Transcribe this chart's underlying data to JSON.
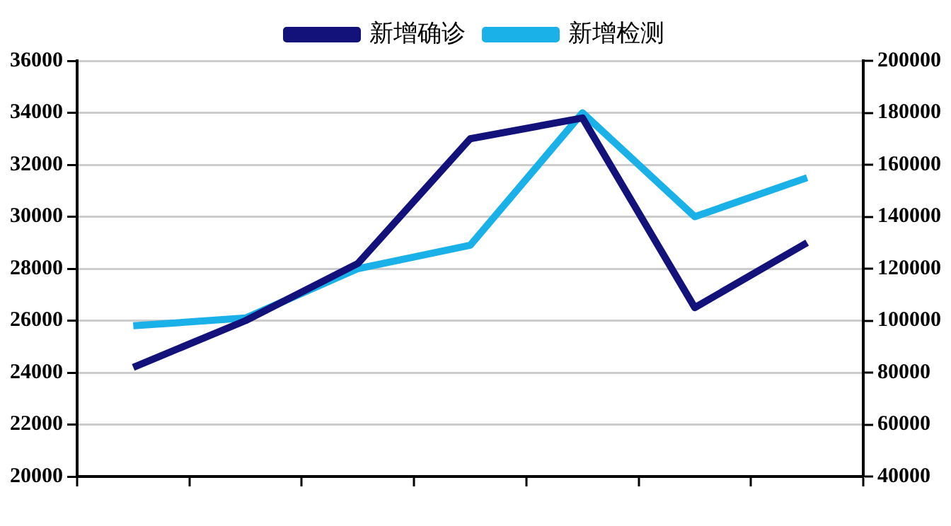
{
  "chart_data": {
    "type": "line",
    "categories": [
      null,
      null,
      null,
      null,
      null,
      null,
      null
    ],
    "series": [
      {
        "name": "新增确诊",
        "color": "#12127a",
        "values": [
          24200,
          26000,
          28200,
          33000,
          33800,
          26500,
          29000
        ]
      },
      {
        "name": "新增检测",
        "color": "#1ab0e8",
        "axis": "y2",
        "values": [
          98000,
          101000,
          120000,
          129000,
          180000,
          140000,
          155000
        ]
      }
    ],
    "ylim": [
      20000,
      36000
    ],
    "yticks": [
      20000,
      22000,
      24000,
      26000,
      28000,
      30000,
      32000,
      34000,
      36000
    ],
    "y2lim": [
      40000,
      200000
    ],
    "y2ticks": [
      40000,
      60000,
      80000,
      100000,
      120000,
      140000,
      160000,
      180000,
      200000
    ],
    "grid": "y",
    "legend": "top",
    "marker": "none",
    "line_style": "solid"
  }
}
